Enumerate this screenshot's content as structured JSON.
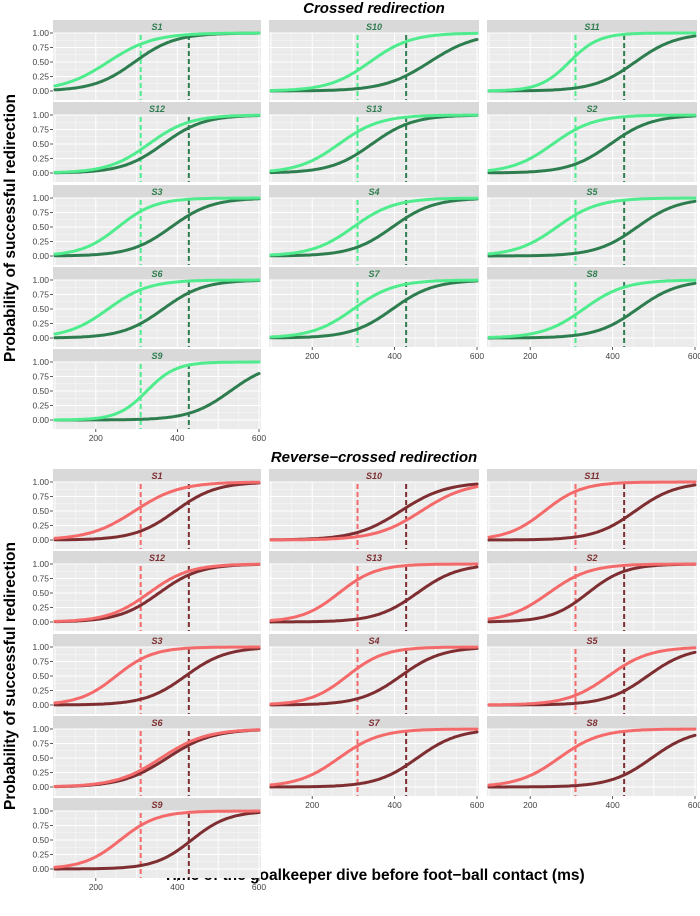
{
  "x_axis_label": "Time of the goalkeeper dive before foot−ball contact (ms)",
  "colors": {
    "panel_bg": "#ebebeb",
    "strip_bg": "#d9d9d9",
    "grid": "#ffffff",
    "crossed_light": "#4fec8e",
    "crossed_dark": "#2e7d4f",
    "crossed_strip_text": "#2e7d4f",
    "reverse_light": "#f46a6a",
    "reverse_dark": "#7e2e31",
    "reverse_strip_text": "#7e2e31"
  },
  "chart_data": [
    {
      "type": "line",
      "title": "Crossed redirection",
      "ylabel": "Probability of successful redirection",
      "xlabel": "Time of the goalkeeper dive before foot−ball contact (ms)",
      "xlim": [
        100,
        600
      ],
      "ylim": [
        0,
        1
      ],
      "x_ticks": [
        200,
        400,
        600
      ],
      "y_ticks": [
        "0.00",
        "0.25",
        "0.50",
        "0.75",
        "1.00"
      ],
      "vlines": [
        310,
        428
      ],
      "facets": [
        {
          "name": "S1",
          "light": {
            "mid": 230,
            "slope": 0.018
          },
          "dark": {
            "mid": 295,
            "slope": 0.02
          }
        },
        {
          "name": "S10",
          "light": {
            "mid": 340,
            "slope": 0.02
          },
          "dark": {
            "mid": 485,
            "slope": 0.018
          }
        },
        {
          "name": "S11",
          "light": {
            "mid": 295,
            "slope": 0.028
          },
          "dark": {
            "mid": 455,
            "slope": 0.02
          }
        },
        {
          "name": "S12",
          "light": {
            "mid": 330,
            "slope": 0.02
          },
          "dark": {
            "mid": 365,
            "slope": 0.02
          }
        },
        {
          "name": "S13",
          "light": {
            "mid": 265,
            "slope": 0.02
          },
          "dark": {
            "mid": 345,
            "slope": 0.02
          }
        },
        {
          "name": "S2",
          "light": {
            "mid": 255,
            "slope": 0.02
          },
          "dark": {
            "mid": 395,
            "slope": 0.02
          }
        },
        {
          "name": "S3",
          "light": {
            "mid": 255,
            "slope": 0.022
          },
          "dark": {
            "mid": 385,
            "slope": 0.02
          }
        },
        {
          "name": "S4",
          "light": {
            "mid": 300,
            "slope": 0.02
          },
          "dark": {
            "mid": 395,
            "slope": 0.02
          }
        },
        {
          "name": "S5",
          "light": {
            "mid": 265,
            "slope": 0.02
          },
          "dark": {
            "mid": 460,
            "slope": 0.02
          }
        },
        {
          "name": "S6",
          "light": {
            "mid": 230,
            "slope": 0.02
          },
          "dark": {
            "mid": 365,
            "slope": 0.02
          }
        },
        {
          "name": "S7",
          "light": {
            "mid": 300,
            "slope": 0.02
          },
          "dark": {
            "mid": 395,
            "slope": 0.02
          }
        },
        {
          "name": "S8",
          "light": {
            "mid": 330,
            "slope": 0.02
          },
          "dark": {
            "mid": 460,
            "slope": 0.02
          }
        },
        {
          "name": "S9",
          "light": {
            "mid": 325,
            "slope": 0.028
          },
          "dark": {
            "mid": 530,
            "slope": 0.02
          }
        }
      ]
    },
    {
      "type": "line",
      "title": "Reverse−crossed redirection",
      "ylabel": "Probability of successful redirection",
      "xlabel": "Time of the goalkeeper dive before foot−ball contact (ms)",
      "xlim": [
        100,
        600
      ],
      "ylim": [
        0,
        1
      ],
      "x_ticks": [
        200,
        400,
        600
      ],
      "y_ticks": [
        "0.00",
        "0.25",
        "0.50",
        "0.75",
        "1.00"
      ],
      "vlines": [
        310,
        428
      ],
      "facets": [
        {
          "name": "S1",
          "light": {
            "mid": 295,
            "slope": 0.018
          },
          "dark": {
            "mid": 395,
            "slope": 0.02
          }
        },
        {
          "name": "S10",
          "light": {
            "mid": 465,
            "slope": 0.018
          },
          "dark": {
            "mid": 415,
            "slope": 0.018
          }
        },
        {
          "name": "S11",
          "light": {
            "mid": 235,
            "slope": 0.022
          },
          "dark": {
            "mid": 455,
            "slope": 0.02
          }
        },
        {
          "name": "S12",
          "light": {
            "mid": 330,
            "slope": 0.02
          },
          "dark": {
            "mid": 355,
            "slope": 0.02
          }
        },
        {
          "name": "S13",
          "light": {
            "mid": 265,
            "slope": 0.022
          },
          "dark": {
            "mid": 455,
            "slope": 0.02
          }
        },
        {
          "name": "S2",
          "light": {
            "mid": 245,
            "slope": 0.02
          },
          "dark": {
            "mid": 340,
            "slope": 0.022
          }
        },
        {
          "name": "S3",
          "light": {
            "mid": 250,
            "slope": 0.022
          },
          "dark": {
            "mid": 420,
            "slope": 0.02
          }
        },
        {
          "name": "S4",
          "light": {
            "mid": 285,
            "slope": 0.022
          },
          "dark": {
            "mid": 415,
            "slope": 0.02
          }
        },
        {
          "name": "S5",
          "light": {
            "mid": 390,
            "slope": 0.02
          },
          "dark": {
            "mid": 485,
            "slope": 0.02
          }
        },
        {
          "name": "S6",
          "light": {
            "mid": 360,
            "slope": 0.018
          },
          "dark": {
            "mid": 375,
            "slope": 0.018
          }
        },
        {
          "name": "S7",
          "light": {
            "mid": 265,
            "slope": 0.02
          },
          "dark": {
            "mid": 455,
            "slope": 0.02
          }
        },
        {
          "name": "S8",
          "light": {
            "mid": 270,
            "slope": 0.02
          },
          "dark": {
            "mid": 495,
            "slope": 0.02
          }
        },
        {
          "name": "S9",
          "light": {
            "mid": 260,
            "slope": 0.022
          },
          "dark": {
            "mid": 435,
            "slope": 0.022
          }
        }
      ]
    }
  ]
}
